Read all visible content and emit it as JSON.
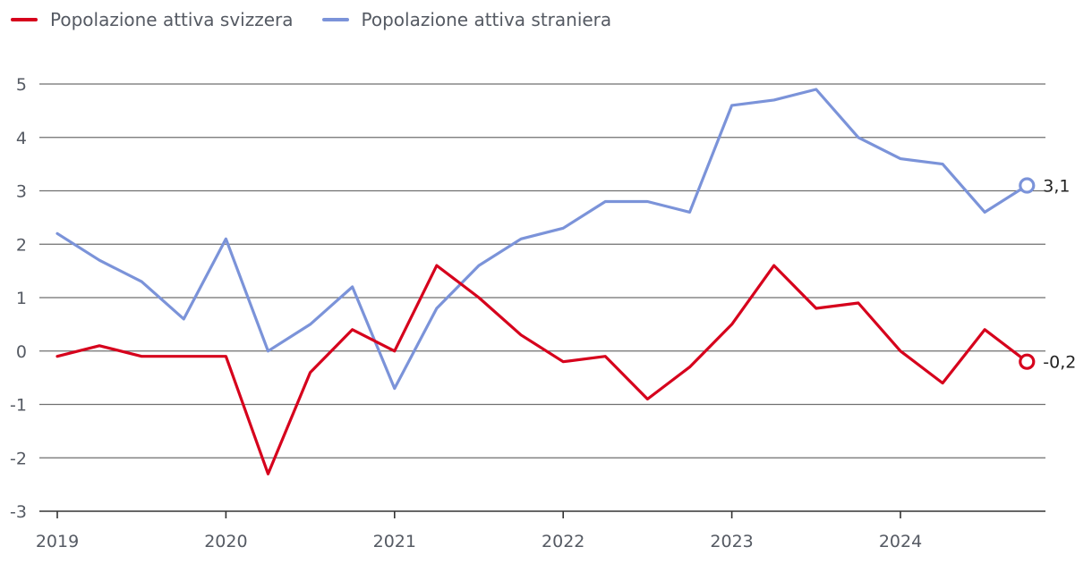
{
  "chart_data": {
    "type": "line",
    "title": "",
    "xlabel": "",
    "ylabel": "",
    "ylim": [
      -3,
      5
    ],
    "yticks": [
      "5",
      "4",
      "3",
      "2",
      "1",
      "0",
      "-1",
      "-2",
      "-3"
    ],
    "xticks": [
      "2019",
      "2020",
      "2021",
      "2022",
      "2023",
      "2024"
    ],
    "grid": true,
    "legend_position": "top-left",
    "x": [
      "2019 T1",
      "2019 T2",
      "2019 T3",
      "2019 T4",
      "2020 T1",
      "2020 T2",
      "2020 T3",
      "2020 T4",
      "2021 T1",
      "2021 T2",
      "2021 T3",
      "2021 T4",
      "2022 T1",
      "2022 T2",
      "2022 T3",
      "2022 T4",
      "2023 T1",
      "2023 T2",
      "2023 T3",
      "2023 T4",
      "2024 T1",
      "2024 T2",
      "2024 T3",
      "2024 T4"
    ],
    "series": [
      {
        "name": "Popolazione attiva svizzera",
        "color": "#d6001c",
        "values": [
          -0.1,
          0.1,
          -0.1,
          -0.1,
          -0.1,
          -2.3,
          -0.4,
          0.4,
          0.0,
          1.6,
          1.0,
          0.3,
          -0.2,
          -0.1,
          -0.9,
          -0.3,
          0.5,
          1.6,
          0.8,
          0.9,
          0.0,
          -0.6,
          0.4,
          -0.2
        ],
        "end_label": "-0,2"
      },
      {
        "name": "Popolazione attiva straniera",
        "color": "#7b93d9",
        "values": [
          2.2,
          1.7,
          1.3,
          0.6,
          2.1,
          0.0,
          0.5,
          1.2,
          -0.7,
          0.8,
          1.6,
          2.1,
          2.3,
          2.8,
          2.8,
          2.6,
          4.6,
          4.7,
          4.9,
          4.0,
          3.6,
          3.5,
          2.6,
          3.1
        ],
        "end_label": "3,1"
      }
    ]
  }
}
